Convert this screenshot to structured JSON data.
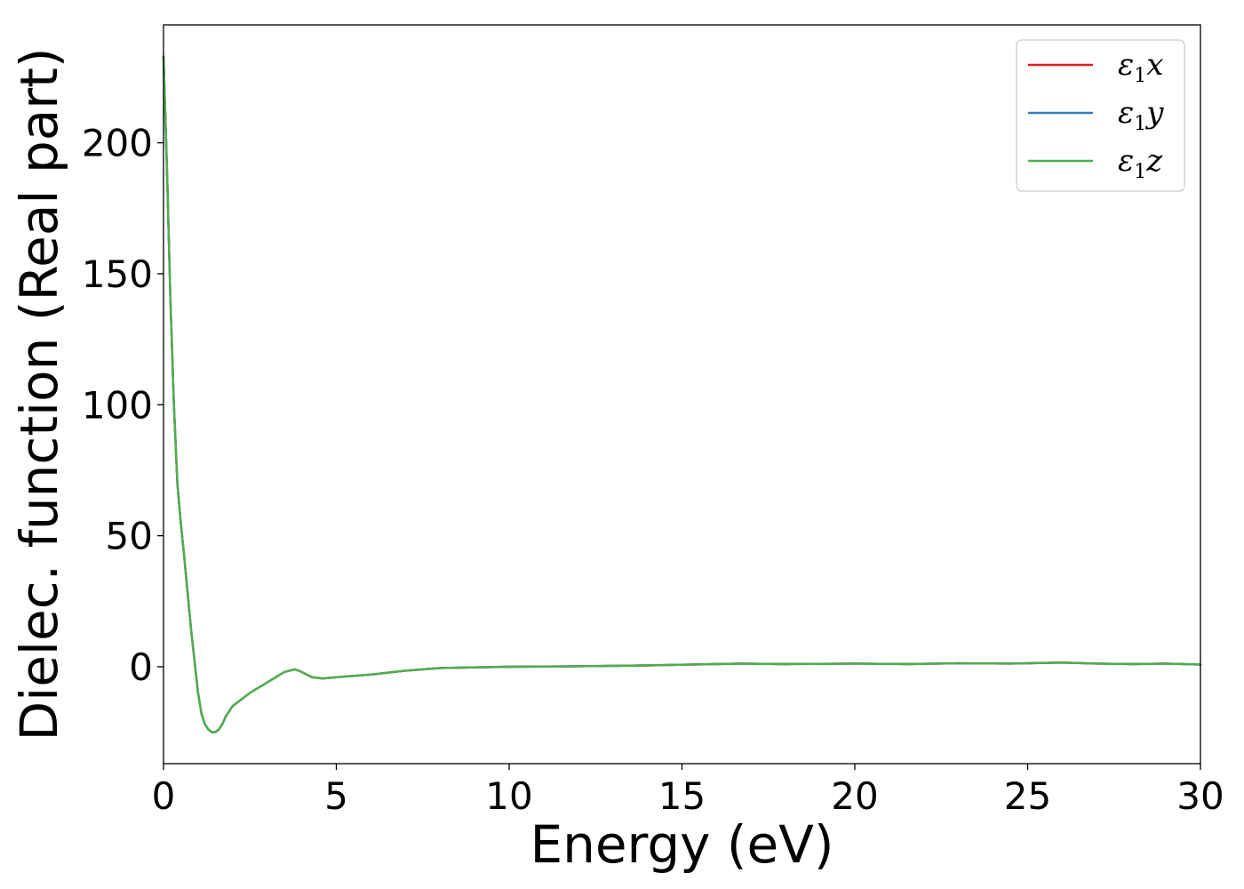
{
  "chart_data": {
    "type": "line",
    "title": "",
    "xlabel": "Energy (eV)",
    "ylabel": "Dielec. function (Real part)",
    "xlim": [
      0,
      30
    ],
    "ylim": [
      -37,
      245
    ],
    "xticks": [
      0,
      5,
      10,
      15,
      20,
      25,
      30
    ],
    "yticks": [
      0,
      50,
      100,
      150,
      200
    ],
    "grid": false,
    "legend_position": "top-right",
    "series": [
      {
        "name": "ε1x",
        "legend_base": "ε",
        "legend_sub": "1",
        "legend_var": "x",
        "color": "#e41a1c",
        "x": [
          0,
          0.1,
          0.2,
          0.3,
          0.4,
          0.5,
          0.6,
          0.7,
          0.8,
          0.9,
          1.0,
          1.1,
          1.2,
          1.3,
          1.4,
          1.5,
          1.6,
          1.7,
          1.8,
          1.9,
          2.0,
          2.2,
          2.5,
          3.0,
          3.5,
          3.8,
          4.0,
          4.3,
          4.6,
          5.0,
          6.0,
          7.0,
          8.0,
          10.0,
          12.0,
          14.0,
          16.0,
          16.7,
          18.0,
          20.0,
          21.5,
          23.0,
          24.5,
          26.0,
          27.0,
          28.0,
          29.0,
          30.0
        ],
        "y": [
          233,
          190,
          140,
          100,
          70,
          55,
          42,
          28,
          14,
          2,
          -10,
          -18,
          -22,
          -24,
          -25,
          -25,
          -24,
          -22,
          -19,
          -17,
          -15,
          -13,
          -10,
          -6,
          -2,
          -1,
          -2,
          -4,
          -4.5,
          -4,
          -3,
          -1.5,
          -0.5,
          0,
          0.2,
          0.5,
          1,
          1.2,
          1,
          1.2,
          1,
          1.3,
          1.2,
          1.6,
          1.2,
          1,
          1.2,
          0.8
        ]
      },
      {
        "name": "ε1y",
        "legend_base": "ε",
        "legend_sub": "1",
        "legend_var": "y",
        "color": "#377eb8",
        "x": [
          0,
          0.1,
          0.2,
          0.3,
          0.4,
          0.5,
          0.6,
          0.7,
          0.8,
          0.9,
          1.0,
          1.1,
          1.2,
          1.3,
          1.4,
          1.5,
          1.6,
          1.7,
          1.8,
          1.9,
          2.0,
          2.2,
          2.5,
          3.0,
          3.5,
          3.8,
          4.0,
          4.3,
          4.6,
          5.0,
          6.0,
          7.0,
          8.0,
          10.0,
          12.0,
          14.0,
          16.0,
          16.7,
          18.0,
          20.0,
          21.5,
          23.0,
          24.5,
          26.0,
          27.0,
          28.0,
          29.0,
          30.0
        ],
        "y": [
          233,
          190,
          140,
          100,
          70,
          55,
          42,
          28,
          14,
          2,
          -10,
          -18,
          -22,
          -24,
          -25,
          -25,
          -24,
          -22,
          -19,
          -17,
          -15,
          -13,
          -10,
          -6,
          -2,
          -1,
          -2,
          -4,
          -4.5,
          -4,
          -3,
          -1.5,
          -0.5,
          0,
          0.2,
          0.5,
          1,
          1.2,
          1,
          1.2,
          1,
          1.3,
          1.2,
          1.6,
          1.2,
          1,
          1.2,
          0.8
        ]
      },
      {
        "name": "ε1z",
        "legend_base": "ε",
        "legend_sub": "1",
        "legend_var": "z",
        "color": "#4daf4a",
        "x": [
          0,
          0.1,
          0.2,
          0.3,
          0.4,
          0.5,
          0.6,
          0.7,
          0.8,
          0.9,
          1.0,
          1.1,
          1.2,
          1.3,
          1.4,
          1.5,
          1.6,
          1.7,
          1.8,
          1.9,
          2.0,
          2.2,
          2.5,
          3.0,
          3.5,
          3.8,
          4.0,
          4.3,
          4.6,
          5.0,
          6.0,
          7.0,
          8.0,
          10.0,
          12.0,
          14.0,
          16.0,
          16.7,
          18.0,
          20.0,
          21.5,
          23.0,
          24.5,
          26.0,
          27.0,
          28.0,
          29.0,
          30.0
        ],
        "y": [
          233,
          190,
          140,
          100,
          70,
          55,
          42,
          28,
          14,
          2,
          -10,
          -18,
          -22,
          -24,
          -25,
          -25,
          -24,
          -22,
          -19,
          -17,
          -15,
          -13,
          -10,
          -6,
          -2,
          -1,
          -2,
          -4,
          -4.5,
          -4,
          -3,
          -1.5,
          -0.5,
          0,
          0.2,
          0.5,
          1,
          1.2,
          1,
          1.2,
          1,
          1.3,
          1.2,
          1.6,
          1.2,
          1,
          1.2,
          0.8
        ]
      }
    ]
  }
}
